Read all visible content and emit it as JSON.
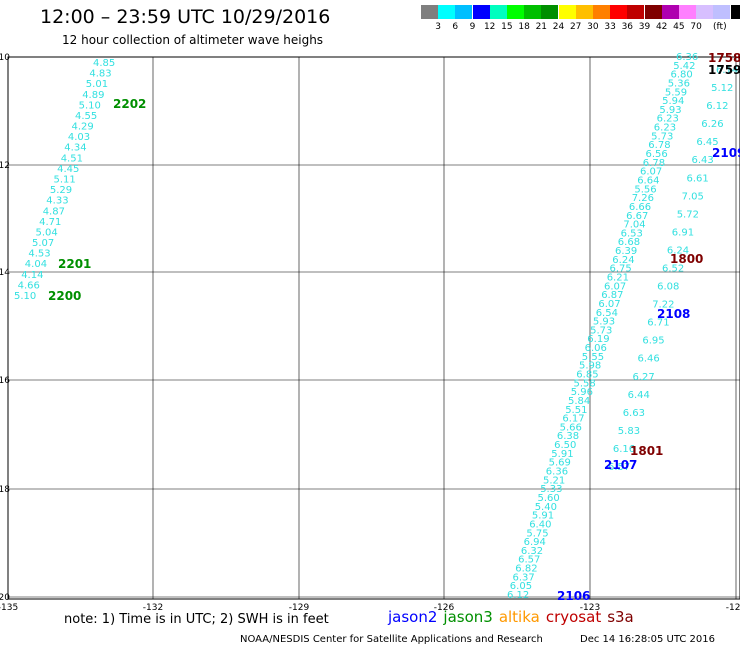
{
  "header": {
    "title": "12:00 – 23:59 UTC 10/29/2016",
    "subtitle": "12 hour collection of altimeter wave heighs"
  },
  "legend": {
    "unit": "(ft)",
    "colors": [
      "#7f7f7f",
      "#00ffff",
      "#00bfff",
      "#0000ff",
      "#00ffbf",
      "#00ff00",
      "#00bf00",
      "#008f00",
      "#ffff00",
      "#ffbf00",
      "#ff7f00",
      "#ff0000",
      "#bf0000",
      "#7f0000",
      "#af00af",
      "#ff7fff",
      "#d7bfff",
      "#bfbfff",
      "#000000"
    ],
    "labels": [
      "3",
      "6",
      "9",
      "12",
      "15",
      "18",
      "21",
      "24",
      "27",
      "30",
      "33",
      "36",
      "39",
      "42",
      "45",
      "70"
    ]
  },
  "axes": {
    "lat_labels": [
      "-10",
      "-12",
      "-14",
      "-16",
      "-18",
      "-20"
    ],
    "lon_labels": [
      "-135",
      "-132",
      "-129",
      "-126",
      "-123",
      "-120"
    ]
  },
  "tracks": [
    {
      "name": "track-west",
      "color": "#33e0e0",
      "values": [
        "4.85",
        "4.83",
        "5.01",
        "4.89",
        "5.10",
        "4.55",
        "4.29",
        "4.03",
        "4.34",
        "4.51",
        "4.45",
        "5.11",
        "5.29",
        "4.33",
        "4.87",
        "4.71",
        "5.04",
        "5.07",
        "4.53",
        "4.04",
        "4.14",
        "4.66",
        "5.10"
      ],
      "times": [
        {
          "label": "2202",
          "color": "#008f00"
        },
        {
          "label": "2201",
          "color": "#008f00"
        },
        {
          "label": "2200",
          "color": "#008f00"
        }
      ]
    },
    {
      "name": "track-east",
      "color": "#33e0e0",
      "values": [
        "6.36",
        "5.42",
        "6.80",
        "5.36",
        "5.59",
        "5.94",
        "5.93",
        "6.23",
        "6.23",
        "5.73",
        "6.78",
        "6.56",
        "6.78",
        "6.07",
        "6.64",
        "5.56",
        "7.26",
        "6.66",
        "6.67",
        "7.04",
        "6.53",
        "6.68",
        "6.39",
        "6.24",
        "6.75",
        "6.21",
        "6.07",
        "6.87",
        "6.07",
        "6.54",
        "5.93",
        "5.73",
        "6.19",
        "6.06",
        "5.55",
        "5.98",
        "6.85",
        "5.58",
        "5.96",
        "5.84",
        "5.51",
        "6.17",
        "5.66",
        "6.38",
        "6.50",
        "5.91",
        "5.69",
        "6.36",
        "5.21",
        "5.33",
        "5.60",
        "5.40",
        "5.91",
        "6.40",
        "5.75",
        "6.94",
        "6.32",
        "6.57",
        "6.82",
        "6.37",
        "6.05",
        "6.12"
      ],
      "values_b": [
        "6.14",
        "5.12",
        "6.12",
        "6.26",
        "6.45",
        "6.43",
        "6.61",
        "7.05",
        "5.72",
        "6.91",
        "6.24",
        "6.52",
        "6.08",
        "7.22",
        "6.71",
        "6.95",
        "6.46",
        "6.27",
        "6.44",
        "6.63",
        "5.83",
        "6.16",
        "6.57"
      ],
      "times": [
        {
          "label": "1758",
          "color": "#7f0000"
        },
        {
          "label": "1759",
          "color": "#000000"
        },
        {
          "label": "2109",
          "color": "#0000ff"
        },
        {
          "label": "1800",
          "color": "#7f0000"
        },
        {
          "label": "2108",
          "color": "#0000ff"
        },
        {
          "label": "1801",
          "color": "#7f0000"
        },
        {
          "label": "2107",
          "color": "#0000ff"
        },
        {
          "label": "2106",
          "color": "#0000ff"
        }
      ]
    }
  ],
  "footer": {
    "note": "note:  1) Time is in UTC;  2) SWH is in feet",
    "satellites": [
      {
        "name": "jason2",
        "color": "#0000ff"
      },
      {
        "name": "jason3",
        "color": "#008f00"
      },
      {
        "name": "altika",
        "color": "#ff9900"
      },
      {
        "name": "cryosat",
        "color": "#bf0000"
      },
      {
        "name": "s3a",
        "color": "#7f0000"
      }
    ],
    "credit": "NOAA/NESDIS Center for Satellite Applications and Research",
    "stamp": "Dec 14 16:28:05 UTC 2016"
  }
}
